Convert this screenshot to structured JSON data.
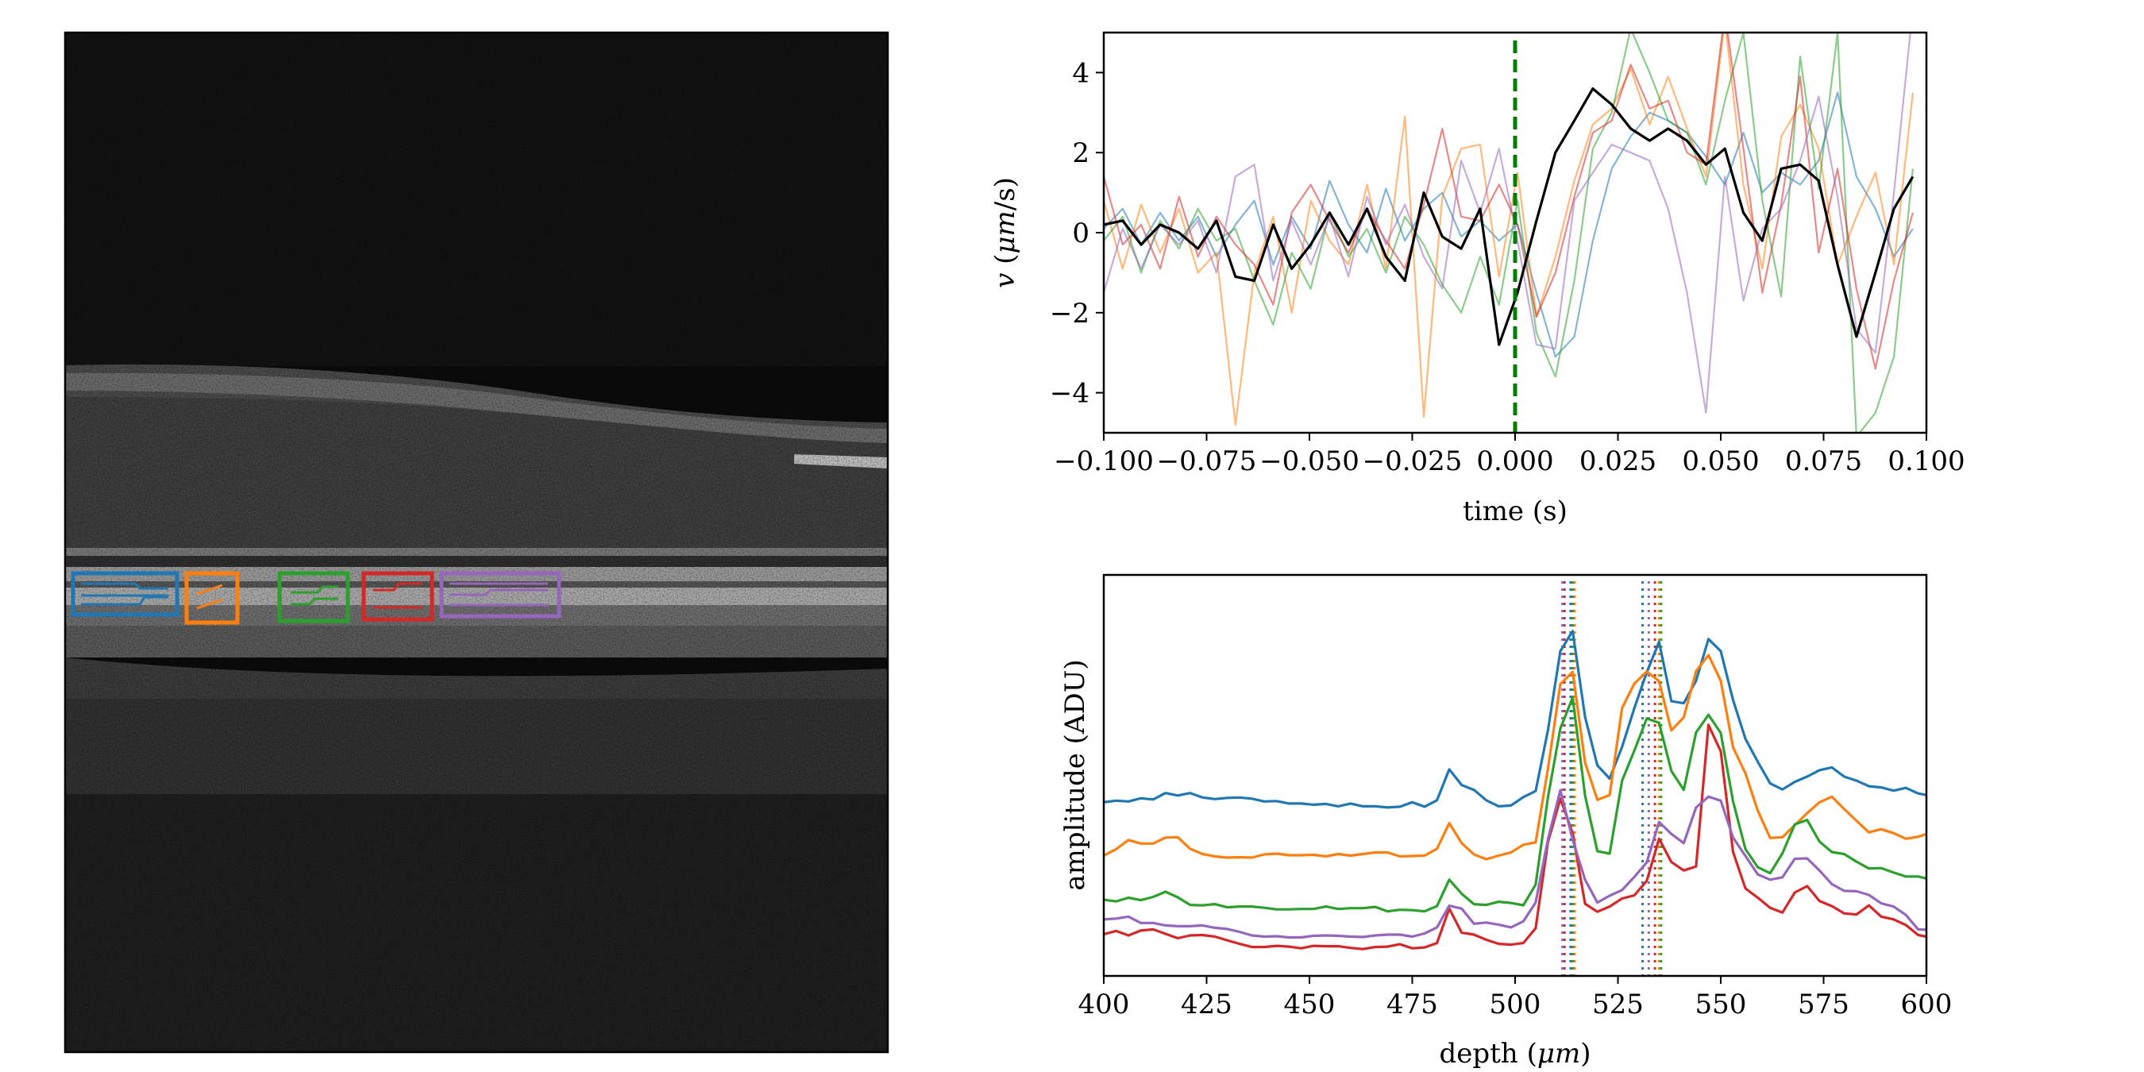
{
  "colors": {
    "blue": "#1f77b4",
    "orange": "#ff7f0e",
    "green": "#2ca02c",
    "red": "#d62728",
    "purple": "#9467bd",
    "mean": "#000000",
    "marker": "#008000"
  },
  "image_panel": {
    "type": "grayscale OCT B-scan",
    "roi_boxes": [
      "blue",
      "orange",
      "green",
      "red",
      "purple"
    ]
  },
  "chart_data": [
    {
      "type": "line",
      "xlabel": "time (s)",
      "ylabel": "v (μm/s)",
      "ylabel_parts": {
        "italic_var": "v",
        "pre": " (",
        "italic_unit": "μm",
        "post": "/s)"
      },
      "xlim": [
        -0.1,
        0.1
      ],
      "ylim": [
        -5,
        5
      ],
      "xticks": [
        -0.1,
        -0.075,
        -0.05,
        -0.025,
        0.0,
        0.025,
        0.05,
        0.075,
        0.1
      ],
      "xtick_labels": [
        "−0.100",
        "−0.075",
        "−0.050",
        "−0.025",
        "0.000",
        "0.025",
        "0.050",
        "0.075",
        "0.100"
      ],
      "yticks": [
        -4,
        -2,
        0,
        2,
        4
      ],
      "ytick_labels": [
        "−4",
        "−2",
        "0",
        "2",
        "4"
      ],
      "vline": {
        "x": 0.0,
        "style": "dashed",
        "color": "marker"
      },
      "x": [
        -0.1,
        -0.0954,
        -0.0909,
        -0.0863,
        -0.0817,
        -0.0771,
        -0.0726,
        -0.068,
        -0.0634,
        -0.0588,
        -0.0543,
        -0.0497,
        -0.0451,
        -0.0405,
        -0.036,
        -0.0314,
        -0.0268,
        -0.0222,
        -0.0177,
        -0.0131,
        -0.0085,
        -0.0039,
        0.0006,
        0.0052,
        0.0098,
        0.0144,
        0.0189,
        0.0235,
        0.0281,
        0.0327,
        0.0372,
        0.0418,
        0.0464,
        0.051,
        0.0555,
        0.0601,
        0.0647,
        0.0693,
        0.0738,
        0.0784,
        0.083,
        0.0876,
        0.0921,
        0.0967
      ],
      "series": [
        {
          "color": "blue",
          "alpha": 0.55,
          "values": [
            0.1,
            0.6,
            -0.3,
            0.5,
            -0.2,
            0.4,
            -0.6,
            0.2,
            0.8,
            -0.8,
            0.4,
            -0.4,
            1.3,
            0.2,
            -0.5,
            1.1,
            -0.2,
            0.6,
            1.0,
            -0.1,
            0.3,
            -0.2,
            0.2,
            -1.5,
            -3.1,
            -2.6,
            -0.2,
            1.6,
            2.4,
            3.0,
            2.8,
            2.5,
            1.9,
            1.2,
            2.5,
            1.0,
            1.5,
            1.2,
            1.8,
            3.5,
            1.4,
            0.6,
            -0.6,
            0.1
          ]
        },
        {
          "color": "orange",
          "alpha": 0.55,
          "values": [
            0.8,
            -0.9,
            0.7,
            -0.5,
            0.6,
            -1.0,
            -0.5,
            -4.8,
            -1.0,
            0.4,
            -2.0,
            0.8,
            -0.2,
            -0.8,
            1.2,
            -0.9,
            2.9,
            -4.6,
            0.9,
            2.1,
            2.2,
            -1.1,
            1.5,
            -2.1,
            -0.6,
            1.3,
            2.7,
            3.1,
            4.1,
            2.7,
            3.9,
            2.6,
            1.4,
            5.3,
            1.2,
            -0.9,
            2.4,
            3.2,
            2.1,
            -0.8,
            0.4,
            1.5,
            -0.8,
            3.5
          ]
        },
        {
          "color": "green",
          "alpha": 0.55,
          "values": [
            -0.2,
            0.4,
            -1.0,
            0.3,
            -0.4,
            0.6,
            -0.2,
            0.1,
            -1.2,
            -2.3,
            -0.5,
            -1.4,
            0.5,
            -0.6,
            0.1,
            -1.0,
            0.4,
            -0.3,
            -1.3,
            -2.0,
            -0.6,
            -1.8,
            0.8,
            -2.5,
            -3.6,
            -1.2,
            2.1,
            3.0,
            5.1,
            4.0,
            2.8,
            2.5,
            1.2,
            3.3,
            5.0,
            0.8,
            -1.6,
            4.4,
            1.1,
            5.0,
            -5.1,
            -4.5,
            -3.1,
            1.6
          ]
        },
        {
          "color": "red",
          "alpha": 0.55,
          "values": [
            1.4,
            -0.3,
            0.2,
            -0.9,
            0.9,
            -0.6,
            0.4,
            -0.3,
            -0.8,
            -1.8,
            0.5,
            1.2,
            0.3,
            -0.5,
            0.6,
            -0.2,
            -0.9,
            0.7,
            2.6,
            0.4,
            0.3,
            1.2,
            0.2,
            -2.1,
            -1.0,
            0.9,
            2.5,
            2.8,
            4.2,
            3.1,
            3.3,
            2.0,
            1.7,
            5.5,
            2.1,
            -1.5,
            0.7,
            3.9,
            -0.5,
            1.6,
            -1.4,
            -3.4,
            -1.2,
            0.5
          ]
        },
        {
          "color": "purple",
          "alpha": 0.55,
          "values": [
            -1.5,
            0.1,
            -0.9,
            0.2,
            -0.3,
            0.3,
            -1.0,
            1.4,
            1.7,
            -1.2,
            0.3,
            -0.8,
            0.4,
            -1.1,
            0.9,
            -0.3,
            0.7,
            -0.6,
            -1.4,
            1.8,
            0.5,
            2.1,
            -0.2,
            -2.8,
            -2.9,
            0.8,
            1.5,
            2.2,
            2.0,
            1.8,
            0.6,
            -1.5,
            -4.5,
            1.4,
            -1.7,
            0.1,
            0.6,
            1.8,
            3.4,
            0.9,
            -2.4,
            -3.0,
            1.0,
            5.6
          ]
        },
        {
          "color": "mean",
          "alpha": 1.0,
          "values": [
            0.2,
            0.3,
            -0.3,
            0.2,
            0.0,
            -0.4,
            0.3,
            -1.1,
            -1.2,
            0.2,
            -0.9,
            -0.3,
            0.5,
            -0.3,
            0.6,
            -0.6,
            -1.2,
            1.0,
            -0.1,
            -0.4,
            0.6,
            -2.8,
            -1.5,
            0.3,
            2.0,
            2.8,
            3.6,
            3.2,
            2.6,
            2.3,
            2.6,
            2.3,
            1.7,
            2.1,
            0.5,
            -0.2,
            1.6,
            1.7,
            1.3,
            -0.8,
            -2.6,
            -1.0,
            0.6,
            1.4
          ]
        }
      ]
    },
    {
      "type": "line",
      "xlabel": "depth (μm)",
      "xlabel_parts": {
        "pre": "depth (",
        "italic_unit": "μm",
        "post": ")"
      },
      "ylabel": "amplitude (ADU)",
      "xlim": [
        400,
        600
      ],
      "ylim": [
        0,
        100
      ],
      "xticks": [
        400,
        425,
        450,
        475,
        500,
        525,
        550,
        575,
        600
      ],
      "xtick_labels": [
        "400",
        "425",
        "450",
        "475",
        "500",
        "525",
        "550",
        "575",
        "600"
      ],
      "yticks": [],
      "vlines": [
        {
          "x": 513.5,
          "color": "blue"
        },
        {
          "x": 514.5,
          "color": "orange"
        },
        {
          "x": 514.0,
          "color": "green"
        },
        {
          "x": 512.0,
          "color": "red"
        },
        {
          "x": 511.5,
          "color": "purple"
        },
        {
          "x": 531.0,
          "color": "blue"
        },
        {
          "x": 535.0,
          "color": "orange"
        },
        {
          "x": 535.5,
          "color": "green"
        },
        {
          "x": 534.0,
          "color": "red"
        },
        {
          "x": 532.5,
          "color": "purple"
        }
      ],
      "x": [
        400,
        403,
        406,
        409,
        412,
        415,
        418,
        421,
        424,
        427,
        430,
        433,
        436,
        439,
        442,
        445,
        448,
        451,
        454,
        457,
        460,
        463,
        466,
        469,
        472,
        475,
        478,
        481,
        484,
        487,
        490,
        493,
        496,
        499,
        502,
        505,
        508,
        511,
        514,
        517,
        520,
        523,
        526,
        529,
        532,
        535,
        538,
        541,
        544,
        547,
        550,
        553,
        556,
        559,
        562,
        565,
        568,
        571,
        574,
        577,
        580,
        583,
        586,
        589,
        592,
        595,
        598,
        600
      ],
      "series": [
        {
          "color": "blue",
          "values": [
            43.3,
            43.7,
            43.5,
            44.3,
            44.0,
            45.6,
            45.0,
            45.6,
            44.5,
            44.1,
            44.4,
            44.5,
            44.2,
            43.5,
            43.6,
            43.0,
            43.0,
            42.7,
            42.9,
            42.3,
            43.0,
            42.3,
            42.3,
            42.0,
            42.2,
            43.3,
            42.2,
            43.8,
            51.5,
            47.6,
            46.4,
            43.8,
            42.3,
            42.5,
            44.6,
            46.1,
            61.3,
            81.0,
            86.0,
            64.6,
            52.5,
            49.2,
            57.1,
            66.8,
            75.7,
            83.3,
            68.5,
            68.0,
            73.6,
            84.0,
            81.0,
            68.8,
            59.1,
            53.4,
            48.0,
            46.5,
            48.4,
            49.7,
            51.3,
            52.0,
            49.7,
            48.7,
            47.3,
            47.0,
            46.2,
            46.9,
            45.5,
            45.1
          ]
        },
        {
          "color": "orange",
          "values": [
            30.0,
            31.6,
            33.9,
            33.0,
            33.0,
            34.5,
            34.6,
            31.7,
            30.4,
            29.8,
            29.5,
            29.6,
            29.5,
            30.3,
            30.5,
            30.1,
            30.1,
            30.2,
            29.8,
            30.4,
            30.0,
            30.4,
            30.8,
            30.8,
            29.8,
            29.9,
            30.0,
            31.7,
            38.1,
            33.1,
            30.3,
            29.1,
            30.0,
            30.8,
            32.7,
            33.3,
            51.7,
            72.8,
            75.8,
            53.2,
            43.9,
            45.1,
            66.8,
            72.9,
            75.9,
            73.5,
            61.2,
            64.5,
            76.0,
            80.0,
            73.6,
            57.0,
            50.5,
            41.2,
            34.4,
            34.6,
            37.6,
            40.6,
            43.3,
            44.7,
            41.6,
            38.7,
            35.8,
            36.6,
            35.6,
            34.2,
            34.7,
            35.4
          ]
        },
        {
          "color": "green",
          "values": [
            19.0,
            18.6,
            19.5,
            18.9,
            19.7,
            21.0,
            19.6,
            17.7,
            17.6,
            17.9,
            17.1,
            17.3,
            17.3,
            17.0,
            16.6,
            16.6,
            16.7,
            16.7,
            17.3,
            16.7,
            16.9,
            16.9,
            17.2,
            16.1,
            16.5,
            16.4,
            16.1,
            17.4,
            24.0,
            20.5,
            17.9,
            17.7,
            18.5,
            18.2,
            17.6,
            22.8,
            44.6,
            61.7,
            69.4,
            45.0,
            31.1,
            30.5,
            48.7,
            56.2,
            64.2,
            63.1,
            51.1,
            46.4,
            60.7,
            65.1,
            60.6,
            43.5,
            31.6,
            27.1,
            25.6,
            30.6,
            37.8,
            38.9,
            33.5,
            30.9,
            30.4,
            28.5,
            26.8,
            26.9,
            25.8,
            24.8,
            24.8,
            24.3
          ]
        },
        {
          "color": "red",
          "values": [
            10.4,
            11.2,
            10.1,
            11.3,
            11.6,
            10.5,
            9.4,
            10.1,
            10.2,
            9.8,
            8.9,
            8.0,
            7.2,
            7.2,
            7.5,
            7.3,
            6.9,
            7.5,
            7.4,
            7.4,
            7.0,
            6.7,
            7.2,
            7.3,
            7.9,
            6.9,
            7.1,
            8.2,
            16.8,
            10.8,
            10.3,
            9.0,
            8.0,
            7.8,
            8.2,
            11.9,
            33.4,
            44.2,
            35.6,
            18.0,
            16.0,
            17.3,
            19.3,
            20.1,
            23.7,
            34.2,
            28.4,
            26.3,
            27.3,
            62.6,
            56.0,
            30.9,
            21.8,
            19.5,
            17.0,
            15.8,
            20.8,
            22.4,
            18.7,
            17.4,
            15.6,
            15.3,
            17.6,
            14.8,
            14.1,
            12.7,
            10.2,
            9.8
          ]
        },
        {
          "color": "purple",
          "values": [
            14.1,
            14.3,
            14.8,
            13.2,
            13.2,
            12.6,
            12.4,
            12.4,
            12.6,
            12.0,
            11.7,
            11.0,
            10.1,
            9.8,
            9.9,
            9.6,
            9.6,
            10.0,
            10.1,
            10.0,
            9.8,
            9.7,
            10.1,
            10.3,
            10.3,
            9.8,
            10.6,
            12.1,
            17.5,
            16.8,
            13.0,
            13.3,
            12.8,
            12.1,
            13.6,
            18.3,
            34.1,
            46.3,
            34.0,
            24.0,
            18.3,
            20.0,
            21.4,
            24.7,
            28.3,
            38.4,
            35.4,
            33.1,
            42.0,
            44.7,
            43.7,
            34.5,
            29.9,
            25.3,
            24.0,
            24.6,
            29.2,
            29.3,
            26.3,
            22.9,
            21.2,
            21.1,
            20.2,
            18.1,
            17.3,
            15.2,
            11.6,
            11.5
          ]
        }
      ]
    }
  ]
}
